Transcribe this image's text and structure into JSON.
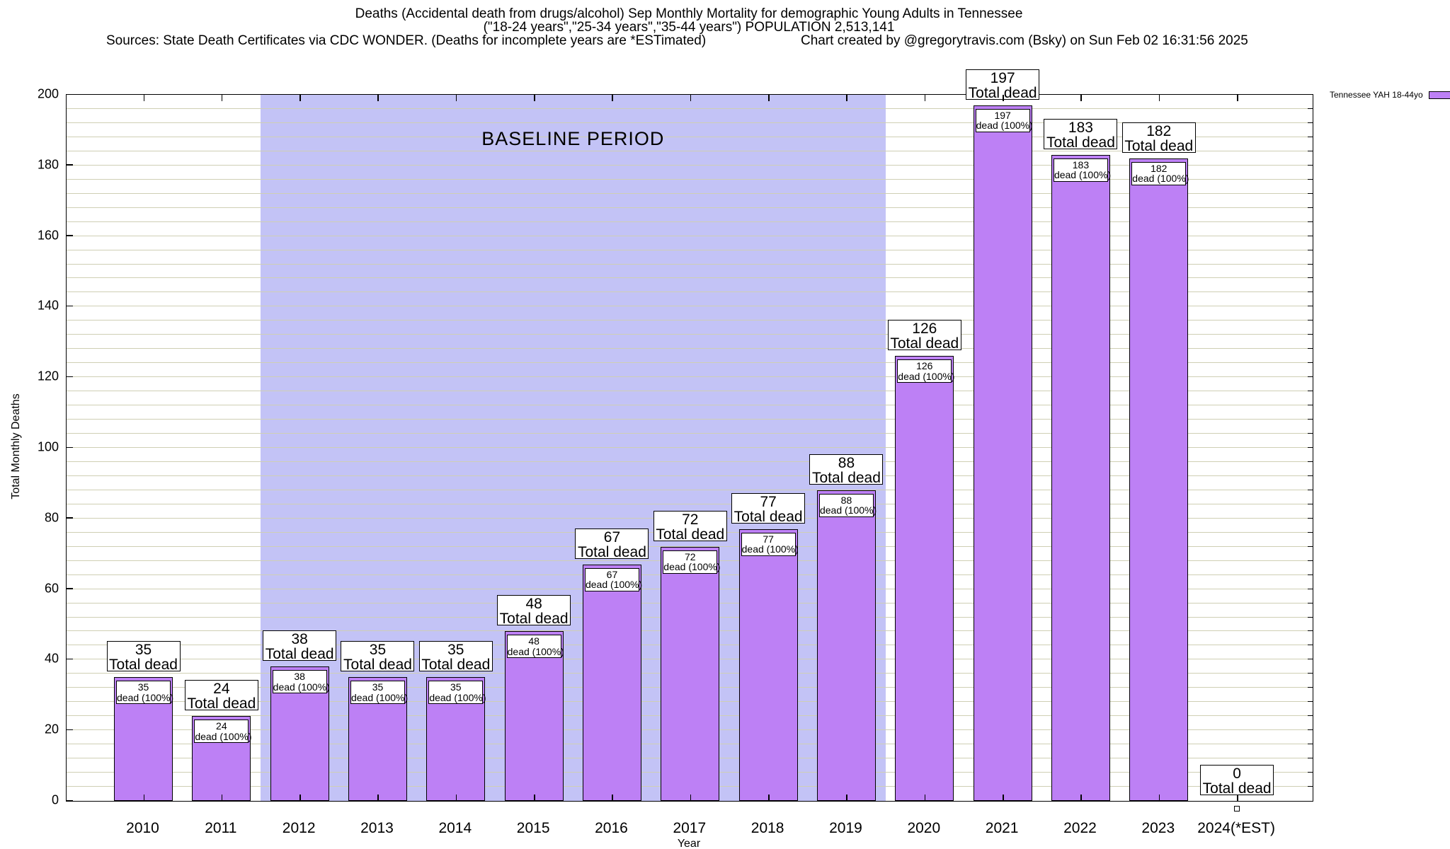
{
  "header": {
    "title_line1": "Deaths (Accidental death from drugs/alcohol) Sep Monthly Mortality for demographic Young Adults in Tennessee",
    "title_line2": "(\"18-24 years\",\"25-34 years\",\"35-44 years\") POPULATION 2,513,141",
    "sources": "Sources: State Death Certificates via CDC WONDER. (Deaths for incomplete years are *ESTimated)",
    "credit": "Chart created by @gregorytravis.com (Bsky) on Sun Feb 02 16:31:56 2025"
  },
  "chart_data": {
    "type": "bar",
    "title": "Deaths (Accidental death from drugs/alcohol) Sep Monthly Mortality for demographic Young Adults in Tennessee",
    "subtitle": "(\"18-24 years\",\"25-34 years\",\"35-44 years\") POPULATION 2,513,141",
    "xlabel": "Year",
    "ylabel": "Total Monthly Deaths",
    "ylim": [
      0,
      200
    ],
    "ytick_step": 20,
    "minor_grid_step": 4,
    "grid": true,
    "categories": [
      "2010",
      "2011",
      "2012",
      "2013",
      "2014",
      "2015",
      "2016",
      "2017",
      "2018",
      "2019",
      "2020",
      "2021",
      "2022",
      "2023",
      "2024(*EST)"
    ],
    "values": [
      35,
      24,
      38,
      35,
      35,
      48,
      67,
      72,
      77,
      88,
      126,
      197,
      183,
      182,
      0
    ],
    "outer_label_suffix": "Total dead",
    "inner_label_suffix": "dead (100%)",
    "baseline_region": {
      "label": "BASELINE PERIOD",
      "from_category": "2012",
      "to_category": "2019"
    },
    "legend": {
      "label": "Tennessee YAH 18-44yo",
      "position": "top-right"
    },
    "colors": {
      "bar_fill": "#bd80f5",
      "baseline_fill": "#c3c3f6",
      "grid_line": "#cfcfb4",
      "axis": "#000000",
      "label_box_bg": "#ffffff"
    }
  }
}
